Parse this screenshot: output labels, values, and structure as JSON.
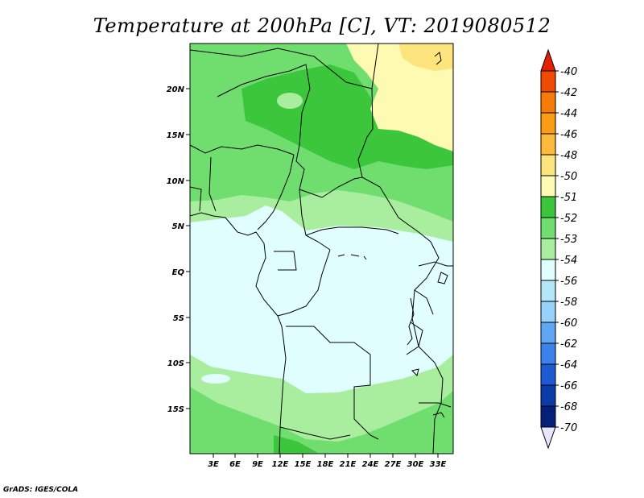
{
  "title": "Temperature at 200hPa [C], VT: 2019080512",
  "credit": "GrADS: IGES/COLA",
  "map": {
    "lat_labels": [
      "20N",
      "15N",
      "10N",
      "5N",
      "EQ",
      "5S",
      "10S",
      "15S"
    ],
    "lon_labels": [
      "3E",
      "6E",
      "9E",
      "12E",
      "15E",
      "18E",
      "21E",
      "24E",
      "27E",
      "30E",
      "33E"
    ]
  },
  "colorbar": {
    "labels": [
      "-40",
      "-42",
      "-44",
      "-46",
      "-48",
      "-50",
      "-51",
      "-52",
      "-53",
      "-54",
      "-56",
      "-58",
      "-60",
      "-62",
      "-64",
      "-66",
      "-68",
      "-70"
    ],
    "colors": [
      "#e61f00",
      "#f04a00",
      "#f67c0a",
      "#fa9d14",
      "#fbba3c",
      "#fde47c",
      "#fdfab2",
      "#3cc63c",
      "#6fde6f",
      "#a9ee9e",
      "#e0fefe",
      "#b4e6fa",
      "#96d2fa",
      "#5fa7f5",
      "#3c82eb",
      "#1e5ad2",
      "#0b3ca8",
      "#04207a",
      "#0a0a5a"
    ]
  },
  "colors": {
    "sea": "#e0fefe",
    "level_m54": "#a9ee9e",
    "level_m53": "#6fde6f",
    "level_m52": "#3cc63c",
    "level_m51": "#fdfab2",
    "level_m50": "#fde47c"
  }
}
